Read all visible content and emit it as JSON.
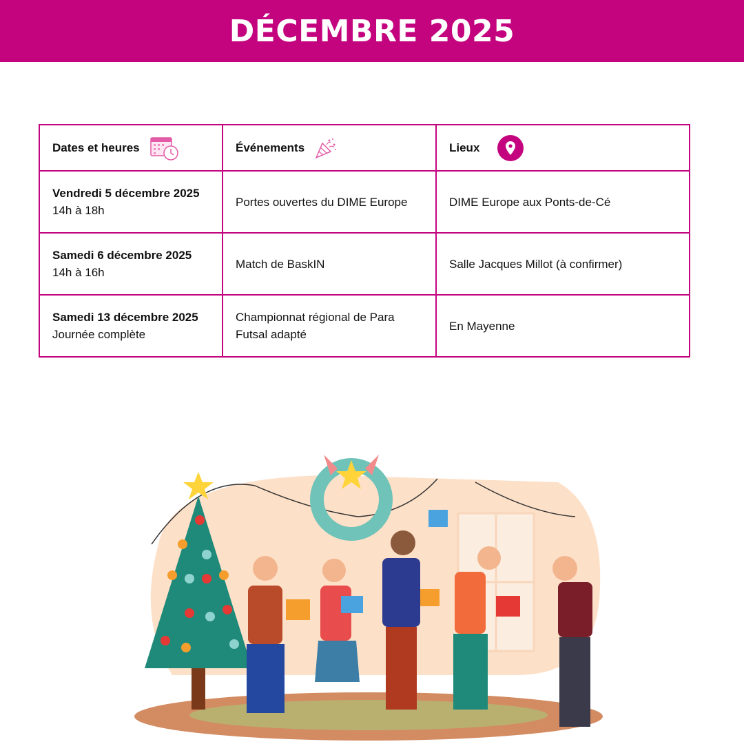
{
  "title": "DÉCEMBRE 2025",
  "accent": "#c3047e",
  "table": {
    "headers": [
      {
        "label": "Dates et heures",
        "icon": "calendar-clock-icon"
      },
      {
        "label": "Événements",
        "icon": "party-popper-icon"
      },
      {
        "label": "Lieux",
        "icon": "map-pin-icon"
      }
    ],
    "rows": [
      {
        "date": "Vendredi 5 décembre 2025",
        "time": "14h à 18h",
        "event": "Portes ouvertes du DIME Europe",
        "place": "DIME Europe aux Ponts-de-Cé"
      },
      {
        "date": "Samedi 6 décembre 2025",
        "time": "14h à 16h",
        "event": "Match de BaskIN",
        "place": "Salle Jacques Millot (à confirmer)"
      },
      {
        "date": "Samedi 13 décembre 2025",
        "time": "Journée complète",
        "event": "Championnat régional de Para Futsal adapté",
        "place": "En Mayenne"
      }
    ]
  },
  "illustration": "christmas-party-illustration"
}
